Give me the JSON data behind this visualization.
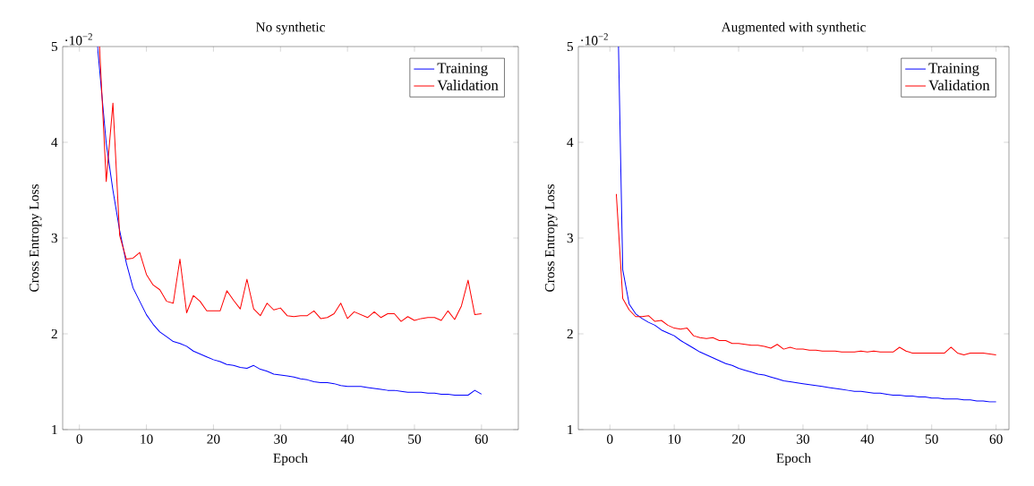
{
  "chart_data": [
    {
      "type": "line",
      "title": "No synthetic",
      "xlabel": "Epoch",
      "ylabel": "Cross Entropy Loss",
      "annotations": [
        "·10$^{−2}$"
      ],
      "xlim": [
        -2.5,
        65.5
      ],
      "xticks": [
        0,
        10,
        20,
        30,
        40,
        50,
        60
      ],
      "ylim": [
        1,
        5
      ],
      "yticks": [
        1,
        2,
        3,
        4,
        5
      ],
      "legend": "top right",
      "grid": false,
      "line_style": "solid",
      "series": [
        {
          "name": "Training",
          "color": "#0000ff",
          "x": [
            2.7,
            4,
            5,
            6,
            7,
            8,
            9,
            10,
            11,
            12,
            13,
            14,
            15,
            16,
            17,
            18,
            19,
            20,
            21,
            22,
            23,
            24,
            25,
            26,
            27,
            28,
            29,
            30,
            31,
            32,
            33,
            34,
            35,
            36,
            37,
            38,
            39,
            40,
            41,
            42,
            43,
            44,
            45,
            46,
            47,
            48,
            49,
            50,
            51,
            52,
            53,
            54,
            55,
            56,
            57,
            58,
            59,
            60
          ],
          "values": [
            5,
            3.99,
            3.5,
            3.08,
            2.74,
            2.48,
            2.34,
            2.2,
            2.1,
            2.02,
            1.97,
            1.92,
            1.9,
            1.87,
            1.82,
            1.79,
            1.76,
            1.73,
            1.71,
            1.68,
            1.67,
            1.65,
            1.64,
            1.67,
            1.63,
            1.61,
            1.58,
            1.57,
            1.56,
            1.55,
            1.53,
            1.52,
            1.5,
            1.49,
            1.49,
            1.48,
            1.46,
            1.45,
            1.45,
            1.45,
            1.44,
            1.43,
            1.42,
            1.41,
            1.41,
            1.4,
            1.39,
            1.39,
            1.39,
            1.38,
            1.38,
            1.37,
            1.37,
            1.36,
            1.36,
            1.36,
            1.41,
            1.37
          ]
        },
        {
          "name": "Validation",
          "color": "#ff0000",
          "x": [
            3,
            4,
            5,
            6,
            7,
            8,
            9,
            10,
            11,
            12,
            13,
            14,
            15,
            16,
            17,
            18,
            19,
            20,
            21,
            22,
            23,
            24,
            25,
            26,
            27,
            28,
            29,
            30,
            31,
            32,
            33,
            34,
            35,
            36,
            37,
            38,
            39,
            40,
            41,
            42,
            43,
            44,
            45,
            46,
            47,
            48,
            49,
            50,
            51,
            52,
            53,
            54,
            55,
            56,
            57,
            58,
            59,
            60
          ],
          "values": [
            5,
            3.59,
            4.41,
            3.03,
            2.78,
            2.79,
            2.85,
            2.62,
            2.51,
            2.46,
            2.34,
            2.32,
            2.78,
            2.22,
            2.4,
            2.34,
            2.24,
            2.24,
            2.24,
            2.45,
            2.35,
            2.26,
            2.57,
            2.26,
            2.19,
            2.32,
            2.25,
            2.27,
            2.19,
            2.18,
            2.19,
            2.19,
            2.24,
            2.16,
            2.17,
            2.21,
            2.32,
            2.16,
            2.23,
            2.2,
            2.17,
            2.23,
            2.17,
            2.21,
            2.21,
            2.13,
            2.18,
            2.14,
            2.16,
            2.17,
            2.17,
            2.14,
            2.24,
            2.15,
            2.29,
            2.56,
            2.2,
            2.21
          ]
        }
      ]
    },
    {
      "type": "line",
      "title": "Augmented with synthetic",
      "xlabel": "Epoch",
      "ylabel": "Cross Entropy Loss",
      "annotations": [
        "·10$^{−2}$"
      ],
      "xlim": [
        -4.9,
        62
      ],
      "xticks": [
        0,
        10,
        20,
        30,
        40,
        50,
        60
      ],
      "ylim": [
        1,
        5
      ],
      "yticks": [
        1,
        2,
        3,
        4,
        5
      ],
      "legend": "top right",
      "grid": false,
      "line_style": "solid",
      "series": [
        {
          "name": "Training",
          "color": "#0000ff",
          "x": [
            1.34,
            2,
            3,
            4,
            5,
            6,
            7,
            8,
            9,
            10,
            11,
            12,
            13,
            14,
            15,
            16,
            17,
            18,
            19,
            20,
            21,
            22,
            23,
            24,
            25,
            26,
            27,
            28,
            29,
            30,
            31,
            32,
            33,
            34,
            35,
            36,
            37,
            38,
            39,
            40,
            41,
            42,
            43,
            44,
            45,
            46,
            47,
            48,
            49,
            50,
            51,
            52,
            53,
            54,
            55,
            56,
            57,
            58,
            59,
            60
          ],
          "values": [
            5,
            2.67,
            2.31,
            2.21,
            2.16,
            2.12,
            2.09,
            2.04,
            2.01,
            1.98,
            1.93,
            1.89,
            1.85,
            1.81,
            1.78,
            1.75,
            1.72,
            1.69,
            1.67,
            1.64,
            1.62,
            1.6,
            1.58,
            1.57,
            1.55,
            1.53,
            1.51,
            1.5,
            1.49,
            1.48,
            1.47,
            1.46,
            1.45,
            1.44,
            1.43,
            1.42,
            1.41,
            1.4,
            1.4,
            1.39,
            1.38,
            1.38,
            1.37,
            1.36,
            1.36,
            1.35,
            1.35,
            1.34,
            1.34,
            1.33,
            1.33,
            1.32,
            1.32,
            1.32,
            1.31,
            1.31,
            1.3,
            1.3,
            1.29,
            1.29
          ]
        },
        {
          "name": "Validation",
          "color": "#ff0000",
          "x": [
            1,
            2,
            3,
            4,
            5,
            6,
            7,
            8,
            9,
            10,
            11,
            12,
            13,
            14,
            15,
            16,
            17,
            18,
            19,
            20,
            21,
            22,
            23,
            24,
            25,
            26,
            27,
            28,
            29,
            30,
            31,
            32,
            33,
            34,
            35,
            36,
            37,
            38,
            39,
            40,
            41,
            42,
            43,
            44,
            45,
            46,
            47,
            48,
            49,
            50,
            51,
            52,
            53,
            54,
            55,
            56,
            57,
            58,
            59,
            60
          ],
          "values": [
            3.46,
            2.37,
            2.25,
            2.18,
            2.18,
            2.19,
            2.13,
            2.14,
            2.09,
            2.06,
            2.05,
            2.06,
            1.98,
            1.96,
            1.95,
            1.96,
            1.93,
            1.93,
            1.9,
            1.9,
            1.89,
            1.88,
            1.88,
            1.87,
            1.85,
            1.89,
            1.84,
            1.86,
            1.84,
            1.84,
            1.83,
            1.83,
            1.82,
            1.82,
            1.82,
            1.81,
            1.81,
            1.81,
            1.82,
            1.81,
            1.82,
            1.81,
            1.81,
            1.81,
            1.86,
            1.82,
            1.8,
            1.8,
            1.8,
            1.8,
            1.8,
            1.8,
            1.86,
            1.8,
            1.78,
            1.8,
            1.8,
            1.8,
            1.79,
            1.78
          ]
        }
      ]
    }
  ]
}
